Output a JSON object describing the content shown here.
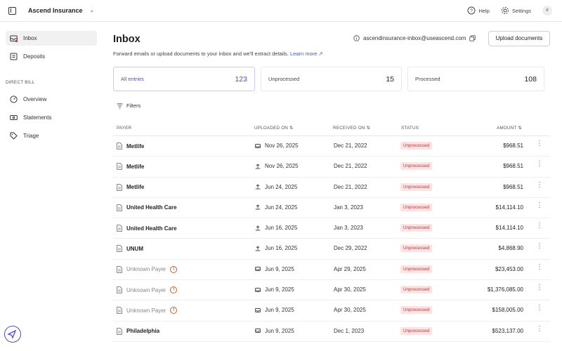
{
  "topbar": {
    "org_name": "Ascend Insurance",
    "help_label": "Help",
    "settings_label": "Settings",
    "avatar_initials": "ir"
  },
  "sidebar": {
    "items": [
      {
        "label": "Inbox",
        "icon": "inbox-icon"
      },
      {
        "label": "Deposits",
        "icon": "deposits-icon"
      }
    ],
    "section_label": "DIRECT BILL",
    "section_items": [
      {
        "label": "Overview",
        "icon": "gauge-icon"
      },
      {
        "label": "Statements",
        "icon": "statements-icon"
      },
      {
        "label": "Triage",
        "icon": "tag-icon"
      }
    ]
  },
  "page": {
    "title": "Inbox",
    "subtitle": "Forward emails or upload documents to your inbox and we'll extract details.",
    "learn_more": "Learn more ↗",
    "email": "ascendinsurance-inbox@useascend.com",
    "upload_label": "Upload documents"
  },
  "tabs": [
    {
      "label": "All entries",
      "count": "123"
    },
    {
      "label": "Unprocessed",
      "count": "15"
    },
    {
      "label": "Processed",
      "count": "108"
    }
  ],
  "filters_label": "Filters",
  "table": {
    "headers": {
      "payer": "PAYER",
      "uploaded": "UPLOADED ON",
      "received": "RECEIVED ON",
      "status": "STATUS",
      "amount": "AMOUNT"
    },
    "rows": [
      {
        "payer": "Metlife",
        "unknown": false,
        "src": "email",
        "uploaded": "Nov 26, 2025",
        "received": "Dec 21, 2022",
        "status": "Unprocessed",
        "amount": "$968.51"
      },
      {
        "payer": "Metlife",
        "unknown": false,
        "src": "upload",
        "uploaded": "Nov 26, 2025",
        "received": "Dec 21, 2022",
        "status": "Unprocessed",
        "amount": "$968.51"
      },
      {
        "payer": "Metlife",
        "unknown": false,
        "src": "upload",
        "uploaded": "Jun 24, 2025",
        "received": "Dec 21, 2022",
        "status": "Unprocessed",
        "amount": "$968.51"
      },
      {
        "payer": "United Health Care",
        "unknown": false,
        "src": "upload",
        "uploaded": "Jun 24, 2025",
        "received": "Jan 3, 2023",
        "status": "Unprocessed",
        "amount": "$14,114.10"
      },
      {
        "payer": "United Health Care",
        "unknown": false,
        "src": "upload",
        "uploaded": "Jun 16, 2025",
        "received": "Jan 3, 2023",
        "status": "Unprocessed",
        "amount": "$14,114.10"
      },
      {
        "payer": "UNUM",
        "unknown": false,
        "src": "upload",
        "uploaded": "Jun 16, 2025",
        "received": "Dec 29, 2022",
        "status": "Unprocessed",
        "amount": "$4,868.90"
      },
      {
        "payer": "Unknown Payer",
        "unknown": true,
        "src": "email",
        "uploaded": "Jun 9, 2025",
        "received": "Apr 29, 2025",
        "status": "Unprocessed",
        "amount": "$23,453.00"
      },
      {
        "payer": "Unknown Payer",
        "unknown": true,
        "src": "email",
        "uploaded": "Jun 9, 2025",
        "received": "Apr 30, 2025",
        "status": "Unprocessed",
        "amount": "$1,376,085.00"
      },
      {
        "payer": "Unknown Payer",
        "unknown": true,
        "src": "email",
        "uploaded": "Jun 9, 2025",
        "received": "Apr 30, 2025",
        "status": "Unprocessed",
        "amount": "$158,005.00"
      },
      {
        "payer": "Philadelphia",
        "unknown": false,
        "src": "email",
        "uploaded": "Jun 9, 2025",
        "received": "Dec 1, 2023",
        "status": "Unprocessed",
        "amount": "$523,137.00"
      }
    ]
  },
  "colors": {
    "accent": "#4b4fc4",
    "status_bg": "#fde3e3",
    "status_text": "#b03a3a",
    "warn": "#c0622a"
  }
}
